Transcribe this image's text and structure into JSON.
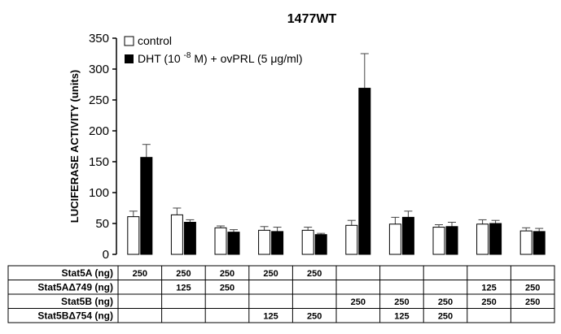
{
  "chart_data": {
    "type": "bar",
    "title": "1477WT",
    "ylabel": "LUCIFERASE ACTIVITY (units)",
    "ylim": [
      0,
      350
    ],
    "yticks": [
      0,
      50,
      100,
      150,
      200,
      250,
      300,
      350
    ],
    "error_bars": true,
    "legend_position": "top-left",
    "series": [
      {
        "name": "control",
        "color": "#ffffff",
        "values": [
          61,
          64,
          43,
          39,
          39,
          47,
          49,
          44,
          49,
          38
        ],
        "errors": [
          9,
          11,
          3,
          6,
          5,
          8,
          11,
          4,
          7,
          5
        ]
      },
      {
        "name": "DHT (10-8 M) + ovPRL (5 μg/ml)",
        "color": "#000000",
        "values": [
          157,
          52,
          36,
          37,
          32,
          269,
          60,
          45,
          50,
          37
        ],
        "errors": [
          21,
          4,
          4,
          7,
          2,
          56,
          10,
          7,
          5,
          5
        ]
      }
    ],
    "legend": {
      "control": "control",
      "treatment_prefix": "DHT (10",
      "treatment_exponent": "-8",
      "treatment_suffix": " M) + ovPRL (5 μg/ml)"
    },
    "table": {
      "rows": [
        {
          "label": "Stat5A (ng)",
          "cells": [
            "250",
            "250",
            "250",
            "250",
            "250",
            "",
            "",
            "",
            "",
            ""
          ]
        },
        {
          "label": "Stat5AΔ749 (ng)",
          "cells": [
            "",
            "125",
            "250",
            "",
            "",
            "",
            "",
            "",
            "125",
            "250"
          ]
        },
        {
          "label": "Stat5B (ng)",
          "cells": [
            "",
            "",
            "",
            "",
            "",
            "250",
            "250",
            "250",
            "250",
            "250"
          ]
        },
        {
          "label": "Stat5BΔ754 (ng)",
          "cells": [
            "",
            "",
            "",
            "125",
            "250",
            "",
            "125",
            "250",
            "",
            ""
          ]
        }
      ]
    }
  }
}
